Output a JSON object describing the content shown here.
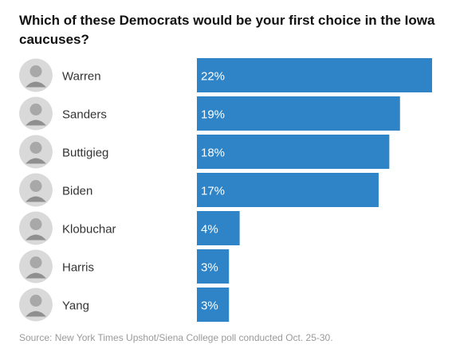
{
  "title": "Which of these Democrats would be your first choice in the Iowa caucuses?",
  "source": "Source: New York Times Upshot/Siena College poll conducted Oct. 25-30.",
  "colors": {
    "bar": "#2e84c6",
    "bar_label": "#ffffff",
    "name_text": "#333333",
    "photo_bg": "#d9d9d9"
  },
  "chart_data": {
    "type": "bar",
    "orientation": "horizontal",
    "title": "Which of these Democrats would be your first choice in the Iowa caucuses?",
    "categories": [
      "Warren",
      "Sanders",
      "Buttigieg",
      "Biden",
      "Klobuchar",
      "Harris",
      "Yang"
    ],
    "values": [
      22,
      19,
      18,
      17,
      4,
      3,
      3
    ],
    "value_labels": [
      "22%",
      "19%",
      "18%",
      "17%",
      "4%",
      "3%",
      "3%"
    ],
    "unit": "%",
    "xlim": [
      0,
      22
    ],
    "grid": false,
    "legend": "none"
  }
}
